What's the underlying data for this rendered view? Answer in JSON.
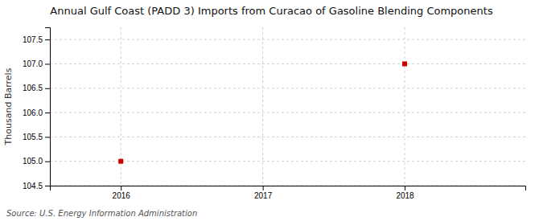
{
  "chart_data": {
    "type": "scatter",
    "title": "Annual Gulf Coast (PADD 3) Imports from Curacao of Gasoline Blending Components",
    "y_label": "Thousand Barrels",
    "annotations": [
      "Source: U.S. Energy Information Administration"
    ],
    "x": [
      2016,
      2018
    ],
    "values": [
      105.0,
      107.0
    ],
    "color": "#cc0000",
    "marker": "square",
    "xlim": [
      2015.5,
      2018.85
    ],
    "ylim": [
      104.5,
      107.75
    ],
    "xticks": [
      2016,
      2017,
      2018
    ],
    "yticks": [
      104.5,
      {
        "value": 105.0,
        "label": "105.0"
      },
      105.5,
      {
        "value": 106.0,
        "label": "106.0"
      },
      106.5,
      {
        "value": 107.0,
        "label": "107.0"
      },
      107.5
    ],
    "grid": true
  }
}
